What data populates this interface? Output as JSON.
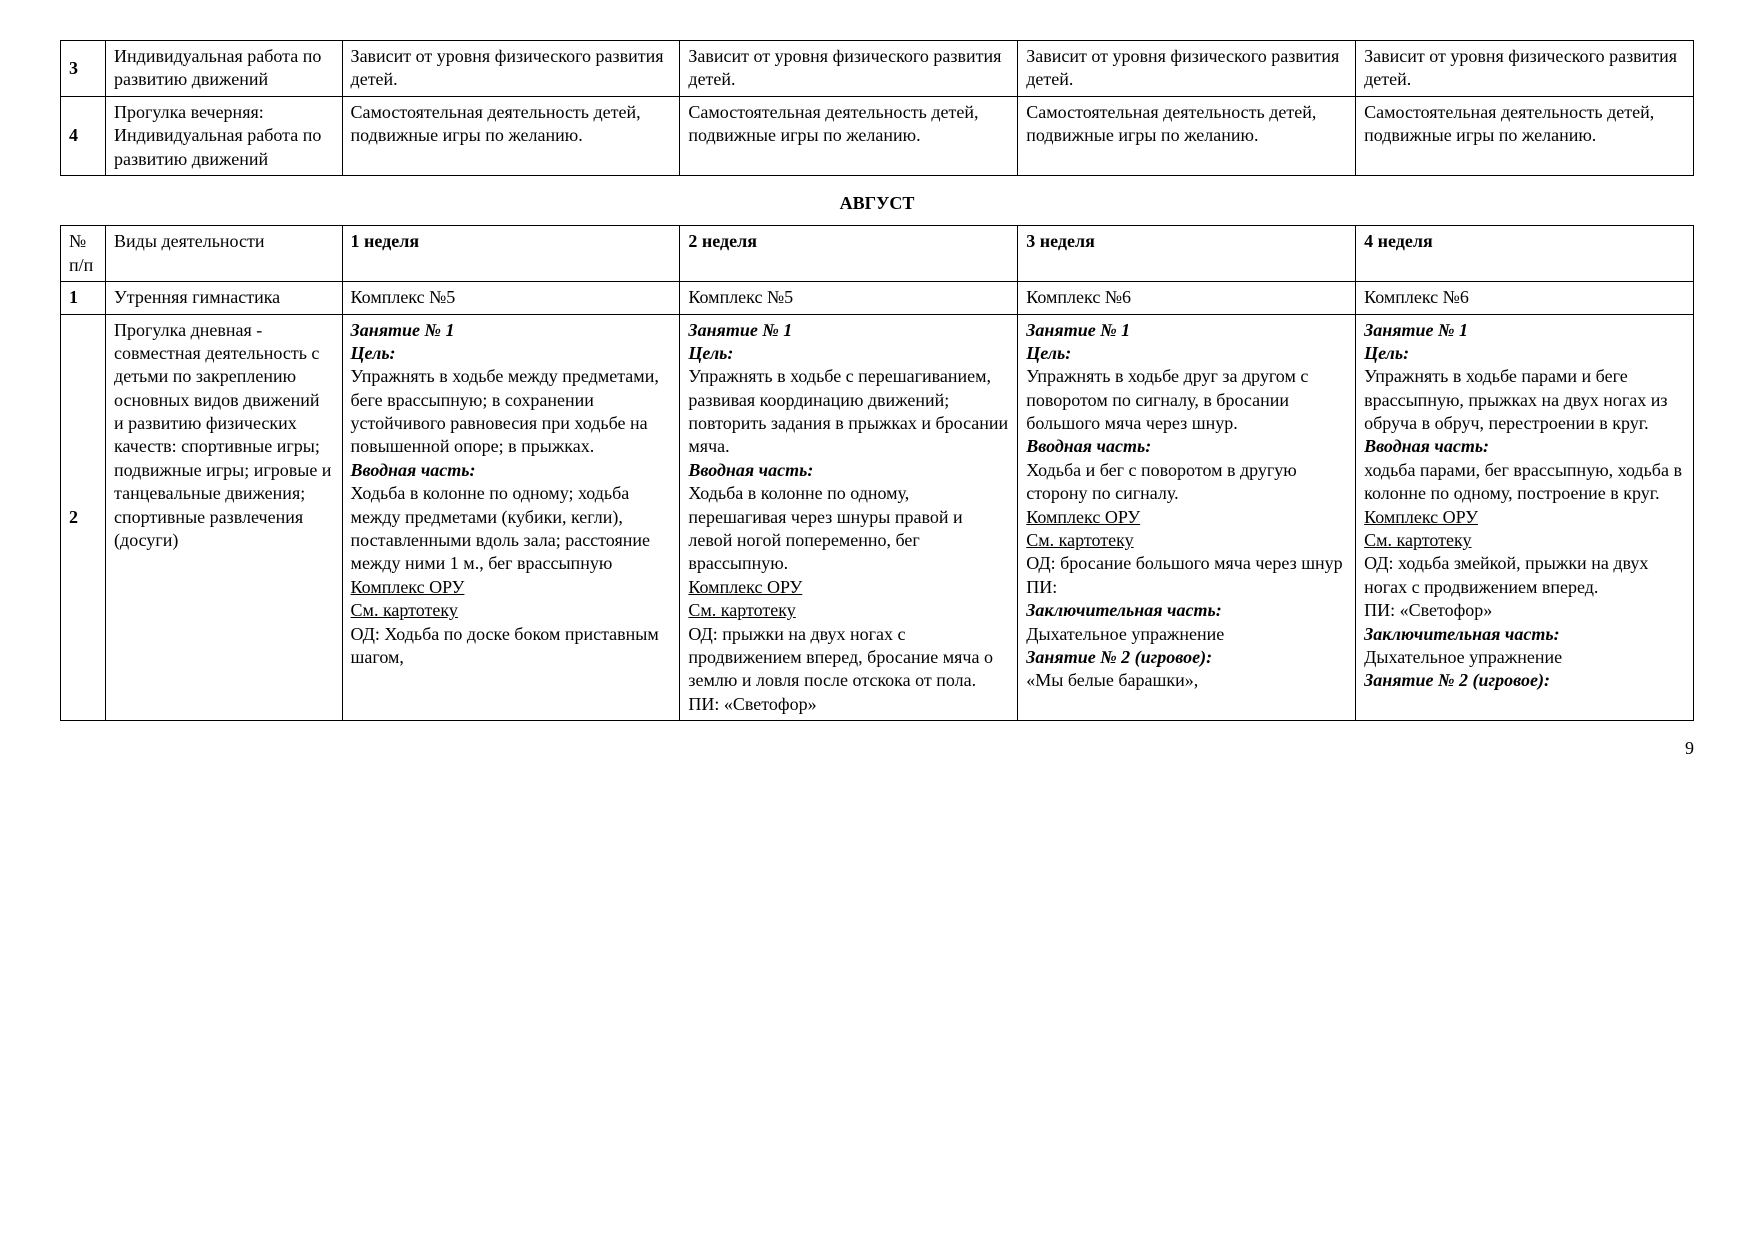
{
  "top_table": {
    "rows": [
      {
        "num": "3",
        "activity": "Индивидуальная работа по развитию движений",
        "w1": "Зависит от уровня физического развития детей.",
        "w2": "Зависит от уровня физического развития детей.",
        "w3": "Зависит от уровня физического развития детей.",
        "w4": "Зависит от уровня физического развития детей."
      },
      {
        "num": "4",
        "activity": "Прогулка вечерняя: Индивидуальная работа по развитию движений",
        "w1": "Самостоятельная деятельность детей, подвижные игры по желанию.",
        "w2": "Самостоятельная деятельность детей, подвижные игры по желанию.",
        "w3": "Самостоятельная деятельность детей, подвижные игры по желанию.",
        "w4": "Самостоятельная деятельность детей, подвижные игры по желанию."
      }
    ]
  },
  "month_heading": "АВГУСТ",
  "main_table": {
    "header": {
      "num": "№ п/п",
      "activity": "Виды деятельности",
      "w1": "1 неделя",
      "w2": "2 неделя",
      "w3": "3 неделя",
      "w4": "4 неделя"
    },
    "row1": {
      "num": "1",
      "activity": "Утренняя гимнастика",
      "w1": "Комплекс №5",
      "w2": "Комплекс №5",
      "w3": "Комплекс №6",
      "w4": "Комплекс №6"
    },
    "row2": {
      "num": "2",
      "activity": "Прогулка дневная - совместная деятельность с детьми по закреплению основных видов движений и развитию физических качеств: спортивные игры; подвижные игры; игровые и танцевальные движения; спортивные развлечения (досуги)",
      "zanyatie": "Занятие № 1",
      "tsel": "Цель:",
      "vvod": "Вводная часть:",
      "komplex": "Комплекс ОРУ",
      "kart": "См. картотеку",
      "zakl": "Заключительная часть:",
      "zan2": "Занятие № 2 (игровое):",
      "w1": {
        "goal": "Упражнять в ходьбе между предметами, беге врассыпную; в сохранении устойчивого равновесия при ходьбе на повышенной опоре; в прыжках.",
        "intro": "Ходьба в колонне по одному; ходьба между предметами (кубики, кегли), поставленными вдоль зала; расстояние между ними 1 м., бег врассыпную",
        "od": "ОД: Ходьба по доске боком приставным шагом,"
      },
      "w2": {
        "goal": "Упражнять в ходьбе с перешагиванием, развивая координацию движений; повторить задания в прыжках и бросании мяча.",
        "intro": "Ходьба в колонне по одному, перешагивая через шнуры правой и левой ногой попеременно, бег врассыпную.",
        "od": "ОД: прыжки на двух ногах с продвижением вперед, бросание мяча о землю и ловля после отскока от пола. ПИ: «Светофор»"
      },
      "w3": {
        "goal": "Упражнять в ходьбе друг за другом с поворотом по сигналу, в бросании большого мяча через шнур.",
        "intro": "Ходьба и бег с поворотом в другую сторону по сигналу.",
        "od": "ОД: бросание большого мяча через шнур",
        "pi": "ПИ:",
        "zakl_txt": "Дыхательное упражнение",
        "zan2_txt": "«Мы белые барашки»,"
      },
      "w4": {
        "goal": "Упражнять в ходьбе парами и беге врассыпную, прыжках на двух ногах из обруча в обруч, перестроении в круг.",
        "intro": "ходьба парами, бег врассыпную, ходьба в колонне по одному, построение в круг.",
        "od": "ОД: ходьба змейкой, прыжки на двух ногах с продвижением вперед.",
        "pi": "ПИ: «Светофор»",
        "zakl_txt": "Дыхательное упражнение"
      }
    }
  },
  "page_number": "9"
}
